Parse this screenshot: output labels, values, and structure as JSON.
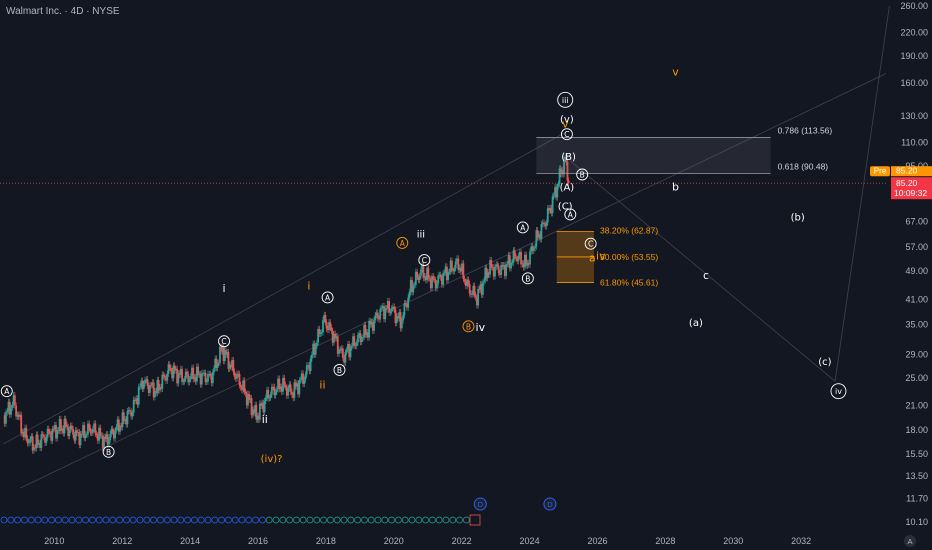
{
  "chart_data": {
    "type": "candlestick",
    "title": "Walmart Inc. · 4D · NYSE",
    "y_scale": "log",
    "ylim": [
      9.3,
      270
    ],
    "xlim": [
      2008.4,
      2034.5
    ],
    "y_ticks": [
      "260.00",
      "220.00",
      "190.00",
      "160.00",
      "130.00",
      "110.00",
      "95.00",
      "85.20",
      "67.00",
      "57.00",
      "49.00",
      "41.00",
      "35.00",
      "29.00",
      "25.00",
      "21.00",
      "18.00",
      "15.50",
      "13.50",
      "11.70",
      "10.10"
    ],
    "y_tick_values": [
      260,
      220,
      190,
      160,
      130,
      110,
      95,
      85.2,
      67,
      57,
      49,
      41,
      35,
      29,
      25,
      21,
      18,
      15.5,
      13.5,
      11.7,
      10.1
    ],
    "x_ticks": [
      "2010",
      "2012",
      "2014",
      "2016",
      "2018",
      "2020",
      "2022",
      "2024",
      "2026",
      "2028",
      "2030",
      "2032"
    ],
    "x_tick_values": [
      2010,
      2012,
      2014,
      2016,
      2018,
      2020,
      2022,
      2024,
      2026,
      2028,
      2030,
      2032
    ],
    "price_path": [
      [
        2008.5,
        19.5
      ],
      [
        2008.8,
        21.5
      ],
      [
        2009.1,
        17.5
      ],
      [
        2009.4,
        16.3
      ],
      [
        2009.8,
        17.5
      ],
      [
        2010.3,
        18.5
      ],
      [
        2010.7,
        17.3
      ],
      [
        2011.1,
        18.2
      ],
      [
        2011.5,
        16.8
      ],
      [
        2011.9,
        18.5
      ],
      [
        2012.3,
        20.5
      ],
      [
        2012.6,
        24.5
      ],
      [
        2013.0,
        23.0
      ],
      [
        2013.4,
        26.5
      ],
      [
        2013.8,
        25.0
      ],
      [
        2014.2,
        25.5
      ],
      [
        2014.6,
        25.0
      ],
      [
        2014.95,
        30.0
      ],
      [
        2015.2,
        27.0
      ],
      [
        2015.6,
        23.0
      ],
      [
        2015.95,
        19.6
      ],
      [
        2016.3,
        22.5
      ],
      [
        2016.7,
        24.0
      ],
      [
        2017.0,
        22.8
      ],
      [
        2017.4,
        25.5
      ],
      [
        2017.7,
        31.0
      ],
      [
        2017.95,
        36.0
      ],
      [
        2018.2,
        33.0
      ],
      [
        2018.5,
        28.5
      ],
      [
        2018.8,
        31.0
      ],
      [
        2019.2,
        33.5
      ],
      [
        2019.6,
        38.0
      ],
      [
        2019.9,
        39.0
      ],
      [
        2020.2,
        35.5
      ],
      [
        2020.5,
        44.0
      ],
      [
        2020.8,
        49.0
      ],
      [
        2021.2,
        45.5
      ],
      [
        2021.6,
        49.0
      ],
      [
        2021.9,
        51.5
      ],
      [
        2022.2,
        44.0
      ],
      [
        2022.45,
        41.5
      ],
      [
        2022.8,
        50.0
      ],
      [
        2023.2,
        49.5
      ],
      [
        2023.6,
        54.0
      ],
      [
        2023.9,
        51.0
      ],
      [
        2024.2,
        60.0
      ],
      [
        2024.5,
        68.0
      ],
      [
        2024.75,
        80.0
      ],
      [
        2024.95,
        93.0
      ],
      [
        2025.05,
        99.0
      ],
      [
        2025.15,
        85.2
      ]
    ],
    "last_price": "85.20",
    "countdown": "10:09:32",
    "pre_label": "Pre",
    "pre_price": "85.20",
    "fib_upper": [
      {
        "label": "0.786 (113.56)",
        "value": 113.56
      },
      {
        "label": "0.618 (90.48)",
        "value": 90.48
      }
    ],
    "fib_lower": [
      {
        "label": "38.20% (62.87)",
        "value": 62.87
      },
      {
        "label": "50.00% (53.55)",
        "value": 53.55
      },
      {
        "label": "61.80% (45.61)",
        "value": 45.61
      }
    ],
    "wave_labels": [
      {
        "text": "A",
        "x": 2008.6,
        "y": 23.0,
        "circle": true,
        "color": "#ffffff"
      },
      {
        "text": "B",
        "x": 2011.6,
        "y": 15.7,
        "circle": true,
        "color": "#ffffff"
      },
      {
        "text": "i",
        "x": 2015.0,
        "y": 44.0,
        "circle": false,
        "color": "#ffffff"
      },
      {
        "text": "C",
        "x": 2015.0,
        "y": 31.5,
        "circle": true,
        "color": "#ffffff"
      },
      {
        "text": "ii",
        "x": 2016.2,
        "y": 19.3,
        "circle": false,
        "color": "#ffffff"
      },
      {
        "text": "(iv)?",
        "x": 2016.4,
        "y": 15.1,
        "circle": false,
        "color": "#ff9800"
      },
      {
        "text": "i",
        "x": 2017.5,
        "y": 44.8,
        "circle": false,
        "color": "#ff9800"
      },
      {
        "text": "A",
        "x": 2018.05,
        "y": 41.5,
        "circle": true,
        "color": "#ffffff"
      },
      {
        "text": "ii",
        "x": 2017.9,
        "y": 24.0,
        "circle": false,
        "color": "#ff9800"
      },
      {
        "text": "B",
        "x": 2018.4,
        "y": 26.3,
        "circle": true,
        "color": "#ffffff"
      },
      {
        "text": "A",
        "x": 2020.25,
        "y": 58.5,
        "circle": true,
        "color": "#ff9800"
      },
      {
        "text": "iii",
        "x": 2020.8,
        "y": 62.0,
        "circle": false,
        "color": "#ffffff"
      },
      {
        "text": "C",
        "x": 2020.9,
        "y": 52.5,
        "circle": true,
        "color": "#ffffff"
      },
      {
        "text": "B",
        "x": 2022.2,
        "y": 34.6,
        "circle": true,
        "color": "#ff9800"
      },
      {
        "text": "iv",
        "x": 2022.55,
        "y": 34.4,
        "circle": false,
        "color": "#ffffff"
      },
      {
        "text": "A",
        "x": 2023.8,
        "y": 64.5,
        "circle": true,
        "color": "#ffffff"
      },
      {
        "text": "B",
        "x": 2023.95,
        "y": 46.8,
        "circle": true,
        "color": "#ffffff"
      },
      {
        "text": "(C)",
        "x": 2025.05,
        "y": 74.0,
        "circle": false,
        "color": "#ffffff"
      },
      {
        "text": "A",
        "x": 2025.2,
        "y": 70.0,
        "circle": true,
        "color": "#ffffff"
      },
      {
        "text": "(A)",
        "x": 2025.1,
        "y": 83.5,
        "circle": false,
        "color": "#ffffff"
      },
      {
        "text": "B",
        "x": 2025.55,
        "y": 90.0,
        "circle": true,
        "color": "#ffffff"
      },
      {
        "text": "(B)",
        "x": 2025.15,
        "y": 101.0,
        "circle": false,
        "color": "#ffffff"
      },
      {
        "text": "C",
        "x": 2025.1,
        "y": 116.0,
        "circle": true,
        "color": "#ffffff"
      },
      {
        "text": "v",
        "x": 2025.05,
        "y": 124.0,
        "circle": false,
        "color": "#ff9800"
      },
      {
        "text": "(v)",
        "x": 2025.1,
        "y": 128.0,
        "circle": false,
        "color": "#ffffff"
      },
      {
        "text": "iii",
        "x": 2025.05,
        "y": 144.0,
        "circle": true,
        "color": "#ffffff"
      },
      {
        "text": "C",
        "x": 2025.8,
        "y": 58.2,
        "circle": true,
        "color": "#ffffff"
      },
      {
        "text": "a",
        "x": 2025.85,
        "y": 53.4,
        "circle": false,
        "color": "#ff9800"
      },
      {
        "text": "iv",
        "x": 2026.1,
        "y": 54.0,
        "circle": false,
        "color": "#ff9800"
      },
      {
        "text": "v",
        "x": 2028.3,
        "y": 172.0,
        "circle": false,
        "color": "#ff9800"
      },
      {
        "text": "b",
        "x": 2028.3,
        "y": 83.5,
        "circle": false,
        "color": "#ffffff"
      },
      {
        "text": "(b)",
        "x": 2031.9,
        "y": 69.0,
        "circle": false,
        "color": "#ffffff"
      },
      {
        "text": "c",
        "x": 2029.2,
        "y": 47.8,
        "circle": false,
        "color": "#ffffff"
      },
      {
        "text": "(a)",
        "x": 2028.9,
        "y": 35.5,
        "circle": false,
        "color": "#ffffff"
      },
      {
        "text": "(c)",
        "x": 2032.7,
        "y": 27.8,
        "circle": false,
        "color": "#ffffff"
      },
      {
        "text": "iv",
        "x": 2033.1,
        "y": 23.0,
        "circle": true,
        "color": "#ffffff"
      }
    ],
    "event_badges": [
      {
        "text": "D",
        "x": 2022.55,
        "y": 11.3,
        "color": "#2962ff"
      },
      {
        "text": "D",
        "x": 2024.6,
        "y": 11.3,
        "color": "#2962ff"
      }
    ]
  }
}
